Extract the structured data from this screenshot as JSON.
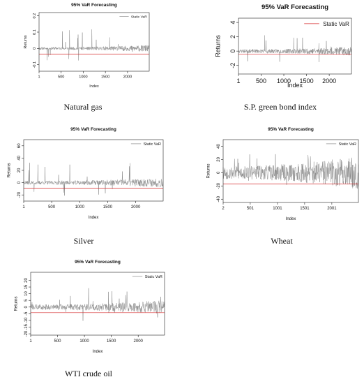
{
  "chart_data": [
    {
      "type": "line",
      "caption": "Natural gas",
      "title": "95% VaR Forecasting",
      "xlabel": "Index",
      "ylabel": "Returns",
      "xticks": [
        1,
        500,
        1000,
        1500,
        2000
      ],
      "yticks": [
        -0.1,
        0,
        0.1,
        0.2
      ],
      "xlim": [
        1,
        2490
      ],
      "ylim": [
        -0.14,
        0.22
      ],
      "series": [
        {
          "name": "Static VaR",
          "kind": "flat",
          "value": -0.035,
          "color": "#d62728",
          "legend_color": "#999999"
        },
        {
          "kind": "returns",
          "color": "#8c8c8c",
          "base_amp": 0.008,
          "spike_count": 18,
          "seed": 11
        }
      ],
      "legend_position": "top-right",
      "grid": false
    },
    {
      "type": "line",
      "caption": "S.P. green bond index",
      "title": "95% VaR Forecasting",
      "xlabel": "Index",
      "ylabel": "Returns",
      "xticks": [
        1,
        500,
        1000,
        1500,
        2000
      ],
      "yticks": [
        -2,
        0,
        2,
        4
      ],
      "xlim": [
        1,
        2490
      ],
      "ylim": [
        -3.2,
        4.6
      ],
      "series": [
        {
          "name": "Static VaR",
          "kind": "flat",
          "value": -0.45,
          "color": "#d62728",
          "legend_color": "#d62728"
        },
        {
          "kind": "returns",
          "color": "#8c8c8c",
          "base_amp": 0.25,
          "spike_count": 14,
          "seed": 23
        }
      ],
      "legend_position": "top-right",
      "grid": false
    },
    {
      "type": "line",
      "caption": "Silver",
      "title": "95% VaR Forecasting",
      "xlabel": "Index",
      "ylabel": "Returns",
      "xticks": [
        1,
        500,
        1000,
        1500,
        2000
      ],
      "yticks": [
        -20,
        0,
        20,
        40,
        60
      ],
      "xlim": [
        1,
        2490
      ],
      "ylim": [
        -30,
        70
      ],
      "series": [
        {
          "name": "Static VaR",
          "kind": "flat",
          "value": -9,
          "color": "#d62728",
          "legend_color": "#999999"
        },
        {
          "kind": "returns",
          "color": "#8c8c8c",
          "base_amp": 3,
          "spike_count": 16,
          "seed": 37
        }
      ],
      "legend_position": "top-right",
      "grid": false
    },
    {
      "type": "line",
      "caption": "Wheat",
      "title": "95% VaR Forecasting",
      "xlabel": "Index",
      "ylabel": "Returns",
      "xticks": [
        2,
        501,
        1001,
        1501,
        2001
      ],
      "yticks": [
        -40,
        -20,
        0,
        20,
        40
      ],
      "xlim": [
        2,
        2490
      ],
      "ylim": [
        -45,
        50
      ],
      "series": [
        {
          "name": "Static VaR",
          "kind": "flat",
          "value": -17,
          "color": "#d62728",
          "legend_color": "#999999"
        },
        {
          "kind": "returns",
          "color": "#8c8c8c",
          "base_amp": 10,
          "spike_count": 22,
          "seed": 53
        }
      ],
      "legend_position": "top-right",
      "grid": false
    },
    {
      "type": "line",
      "caption": "WTI crude oil",
      "title": "95% VaR Forecasting",
      "xlabel": "Index",
      "ylabel": "Returns",
      "xticks": [
        1,
        500,
        1000,
        1500,
        2000
      ],
      "yticks": [
        -20,
        -15,
        -10,
        -5,
        0,
        5,
        10,
        15,
        20
      ],
      "xlim": [
        1,
        2490
      ],
      "ylim": [
        -21,
        26
      ],
      "series": [
        {
          "name": "Static VaR",
          "kind": "flat",
          "value": -4.2,
          "color": "#d62728",
          "legend_color": "#999999"
        },
        {
          "kind": "returns",
          "color": "#8c8c8c",
          "base_amp": 2,
          "spike_count": 20,
          "seed": 71
        }
      ],
      "legend_position": "top-right",
      "grid": false
    }
  ]
}
